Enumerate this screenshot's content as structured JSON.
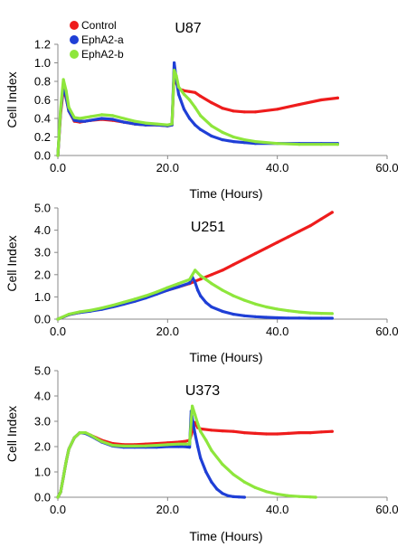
{
  "colors": {
    "Control": "#ee1c1c",
    "EphA2-a": "#1f3fd6",
    "EphA2-b": "#8ee63c",
    "axis": "#888888"
  },
  "chart_data": [
    {
      "type": "line",
      "title": "U87",
      "xlabel": "Time (Hours)",
      "ylabel": "Cell Index",
      "xlim": [
        0,
        60
      ],
      "ylim": [
        0,
        1.2
      ],
      "xticks": [
        "0.0",
        "20.0",
        "40.0",
        "60.0"
      ],
      "yticks": [
        "0.0",
        "0.2",
        "0.4",
        "0.6",
        "0.8",
        "1.0",
        "1.2"
      ],
      "legend": {
        "placement": "top-left",
        "entries": [
          "Control",
          "EphA2-a",
          "EphA2-b"
        ]
      },
      "series": [
        {
          "name": "Control",
          "color_key": "Control",
          "x": [
            0,
            0.5,
            1,
            1.5,
            2,
            3,
            4,
            5,
            6,
            8,
            10,
            12,
            14,
            16,
            18,
            20,
            20.8,
            21.2,
            21.6,
            22,
            23,
            24,
            25,
            26,
            28,
            30,
            32,
            34,
            36,
            40,
            44,
            48,
            51
          ],
          "y": [
            0,
            0.45,
            0.72,
            0.62,
            0.48,
            0.37,
            0.36,
            0.37,
            0.38,
            0.39,
            0.38,
            0.36,
            0.34,
            0.33,
            0.33,
            0.32,
            0.33,
            0.92,
            0.78,
            0.72,
            0.7,
            0.69,
            0.68,
            0.64,
            0.57,
            0.51,
            0.48,
            0.47,
            0.47,
            0.5,
            0.55,
            0.6,
            0.62
          ]
        },
        {
          "name": "EphA2-a",
          "color_key": "EphA2-a",
          "x": [
            0,
            0.5,
            1,
            1.5,
            2,
            3,
            4,
            5,
            6,
            8,
            10,
            12,
            14,
            16,
            18,
            20,
            20.8,
            21.2,
            21.6,
            22,
            23,
            24,
            25,
            26,
            28,
            30,
            32,
            34,
            36,
            40,
            44,
            48,
            51
          ],
          "y": [
            0,
            0.48,
            0.75,
            0.63,
            0.48,
            0.38,
            0.37,
            0.37,
            0.38,
            0.4,
            0.39,
            0.36,
            0.34,
            0.33,
            0.33,
            0.32,
            0.33,
            1.0,
            0.82,
            0.66,
            0.5,
            0.4,
            0.33,
            0.28,
            0.21,
            0.17,
            0.15,
            0.14,
            0.13,
            0.13,
            0.13,
            0.13,
            0.13
          ]
        },
        {
          "name": "EphA2-b",
          "color_key": "EphA2-b",
          "x": [
            0,
            0.5,
            1,
            1.5,
            2,
            3,
            4,
            5,
            6,
            8,
            10,
            12,
            14,
            16,
            18,
            20,
            20.8,
            21.2,
            21.6,
            22,
            23,
            24,
            25,
            26,
            28,
            30,
            32,
            34,
            36,
            40,
            44,
            48,
            51
          ],
          "y": [
            0,
            0.5,
            0.82,
            0.7,
            0.52,
            0.41,
            0.4,
            0.41,
            0.42,
            0.44,
            0.43,
            0.4,
            0.37,
            0.35,
            0.34,
            0.33,
            0.34,
            0.92,
            0.86,
            0.74,
            0.66,
            0.6,
            0.52,
            0.43,
            0.32,
            0.25,
            0.2,
            0.17,
            0.15,
            0.13,
            0.12,
            0.12,
            0.12
          ]
        }
      ]
    },
    {
      "type": "line",
      "title": "U251",
      "xlabel": "Time (Hours)",
      "ylabel": "Cell Index",
      "xlim": [
        0,
        60
      ],
      "ylim": [
        0,
        5
      ],
      "xticks": [
        "0.0",
        "20.0",
        "40.0",
        "60.0"
      ],
      "yticks": [
        "0.0",
        "1.0",
        "2.0",
        "3.0",
        "4.0",
        "5.0"
      ],
      "series": [
        {
          "name": "Control",
          "color_key": "Control",
          "x": [
            0,
            2,
            4,
            6,
            8,
            10,
            12,
            14,
            16,
            18,
            20,
            22,
            24,
            26,
            28,
            30,
            32,
            34,
            36,
            38,
            40,
            42,
            44,
            46,
            48,
            50
          ],
          "y": [
            0,
            0.2,
            0.3,
            0.38,
            0.46,
            0.56,
            0.68,
            0.82,
            0.98,
            1.15,
            1.3,
            1.45,
            1.6,
            1.8,
            2.0,
            2.2,
            2.45,
            2.7,
            2.95,
            3.2,
            3.45,
            3.7,
            3.95,
            4.2,
            4.5,
            4.8
          ]
        },
        {
          "name": "EphA2-a",
          "color_key": "EphA2-a",
          "x": [
            0,
            2,
            4,
            6,
            8,
            10,
            12,
            14,
            16,
            18,
            20,
            22,
            24,
            24.5,
            25,
            25.5,
            26,
            27,
            28,
            30,
            32,
            34,
            36,
            38,
            40,
            42,
            44,
            46,
            48,
            50
          ],
          "y": [
            0,
            0.2,
            0.3,
            0.36,
            0.44,
            0.55,
            0.67,
            0.8,
            0.95,
            1.12,
            1.3,
            1.45,
            1.62,
            1.9,
            1.65,
            1.3,
            1.05,
            0.75,
            0.55,
            0.35,
            0.22,
            0.15,
            0.11,
            0.08,
            0.06,
            0.05,
            0.05,
            0.04,
            0.04,
            0.04
          ]
        },
        {
          "name": "EphA2-b",
          "color_key": "EphA2-b",
          "x": [
            0,
            2,
            4,
            6,
            8,
            10,
            12,
            14,
            16,
            18,
            20,
            22,
            24,
            25,
            26,
            27,
            28,
            30,
            32,
            34,
            36,
            38,
            40,
            42,
            44,
            46,
            48,
            50
          ],
          "y": [
            0,
            0.22,
            0.33,
            0.4,
            0.5,
            0.62,
            0.76,
            0.9,
            1.05,
            1.22,
            1.42,
            1.6,
            1.78,
            2.2,
            1.95,
            1.78,
            1.6,
            1.3,
            1.05,
            0.85,
            0.68,
            0.55,
            0.45,
            0.38,
            0.32,
            0.28,
            0.26,
            0.25
          ]
        }
      ]
    },
    {
      "type": "line",
      "title": "U373",
      "xlabel": "Time (Hours)",
      "ylabel": "Cell Index",
      "xlim": [
        0,
        60
      ],
      "ylim": [
        0,
        5
      ],
      "xticks": [
        "0.0",
        "20.0",
        "40.0",
        "60.0"
      ],
      "yticks": [
        "0.0",
        "1.0",
        "2.0",
        "3.0",
        "4.0",
        "5.0"
      ],
      "series": [
        {
          "name": "Control",
          "color_key": "Control",
          "x": [
            0,
            0.5,
            1,
            1.5,
            2,
            3,
            4,
            5,
            6,
            7,
            8,
            10,
            12,
            14,
            16,
            18,
            20,
            22,
            23,
            24,
            24.5,
            25,
            25.5,
            26,
            28,
            30,
            32,
            34,
            36,
            38,
            40,
            42,
            44,
            46,
            48,
            50
          ],
          "y": [
            0,
            0.2,
            0.8,
            1.4,
            1.9,
            2.35,
            2.55,
            2.55,
            2.45,
            2.35,
            2.25,
            2.12,
            2.08,
            2.08,
            2.1,
            2.12,
            2.15,
            2.18,
            2.2,
            2.25,
            2.6,
            2.95,
            2.75,
            2.7,
            2.65,
            2.62,
            2.6,
            2.55,
            2.52,
            2.5,
            2.5,
            2.52,
            2.55,
            2.55,
            2.58,
            2.6
          ]
        },
        {
          "name": "EphA2-a",
          "color_key": "EphA2-a",
          "x": [
            0,
            0.5,
            1,
            1.5,
            2,
            3,
            4,
            5,
            6,
            7,
            8,
            10,
            12,
            14,
            16,
            18,
            20,
            22,
            23,
            24,
            24.3,
            24.6,
            25,
            25.5,
            26,
            27,
            28,
            29,
            30,
            31,
            32,
            33,
            34
          ],
          "y": [
            0,
            0.2,
            0.8,
            1.4,
            1.9,
            2.35,
            2.55,
            2.52,
            2.42,
            2.3,
            2.18,
            2.02,
            1.98,
            1.98,
            1.98,
            1.98,
            2.0,
            2.0,
            2.0,
            1.98,
            3.4,
            3.0,
            2.5,
            2.0,
            1.55,
            1.0,
            0.6,
            0.32,
            0.15,
            0.06,
            0.02,
            0.01,
            0.0
          ]
        },
        {
          "name": "EphA2-b",
          "color_key": "EphA2-b",
          "x": [
            0,
            0.5,
            1,
            1.5,
            2,
            3,
            4,
            5,
            6,
            7,
            8,
            10,
            12,
            14,
            16,
            18,
            20,
            22,
            23,
            24,
            24.5,
            25,
            25.5,
            26,
            27,
            28,
            30,
            32,
            34,
            36,
            38,
            40,
            42,
            44,
            46,
            47
          ],
          "y": [
            0,
            0.2,
            0.8,
            1.4,
            1.9,
            2.35,
            2.55,
            2.55,
            2.45,
            2.32,
            2.2,
            2.05,
            2.02,
            2.02,
            2.03,
            2.05,
            2.08,
            2.1,
            2.1,
            2.1,
            3.6,
            3.25,
            2.9,
            2.6,
            2.25,
            1.85,
            1.3,
            0.9,
            0.6,
            0.38,
            0.22,
            0.12,
            0.06,
            0.03,
            0.01,
            0.0
          ]
        }
      ]
    }
  ]
}
